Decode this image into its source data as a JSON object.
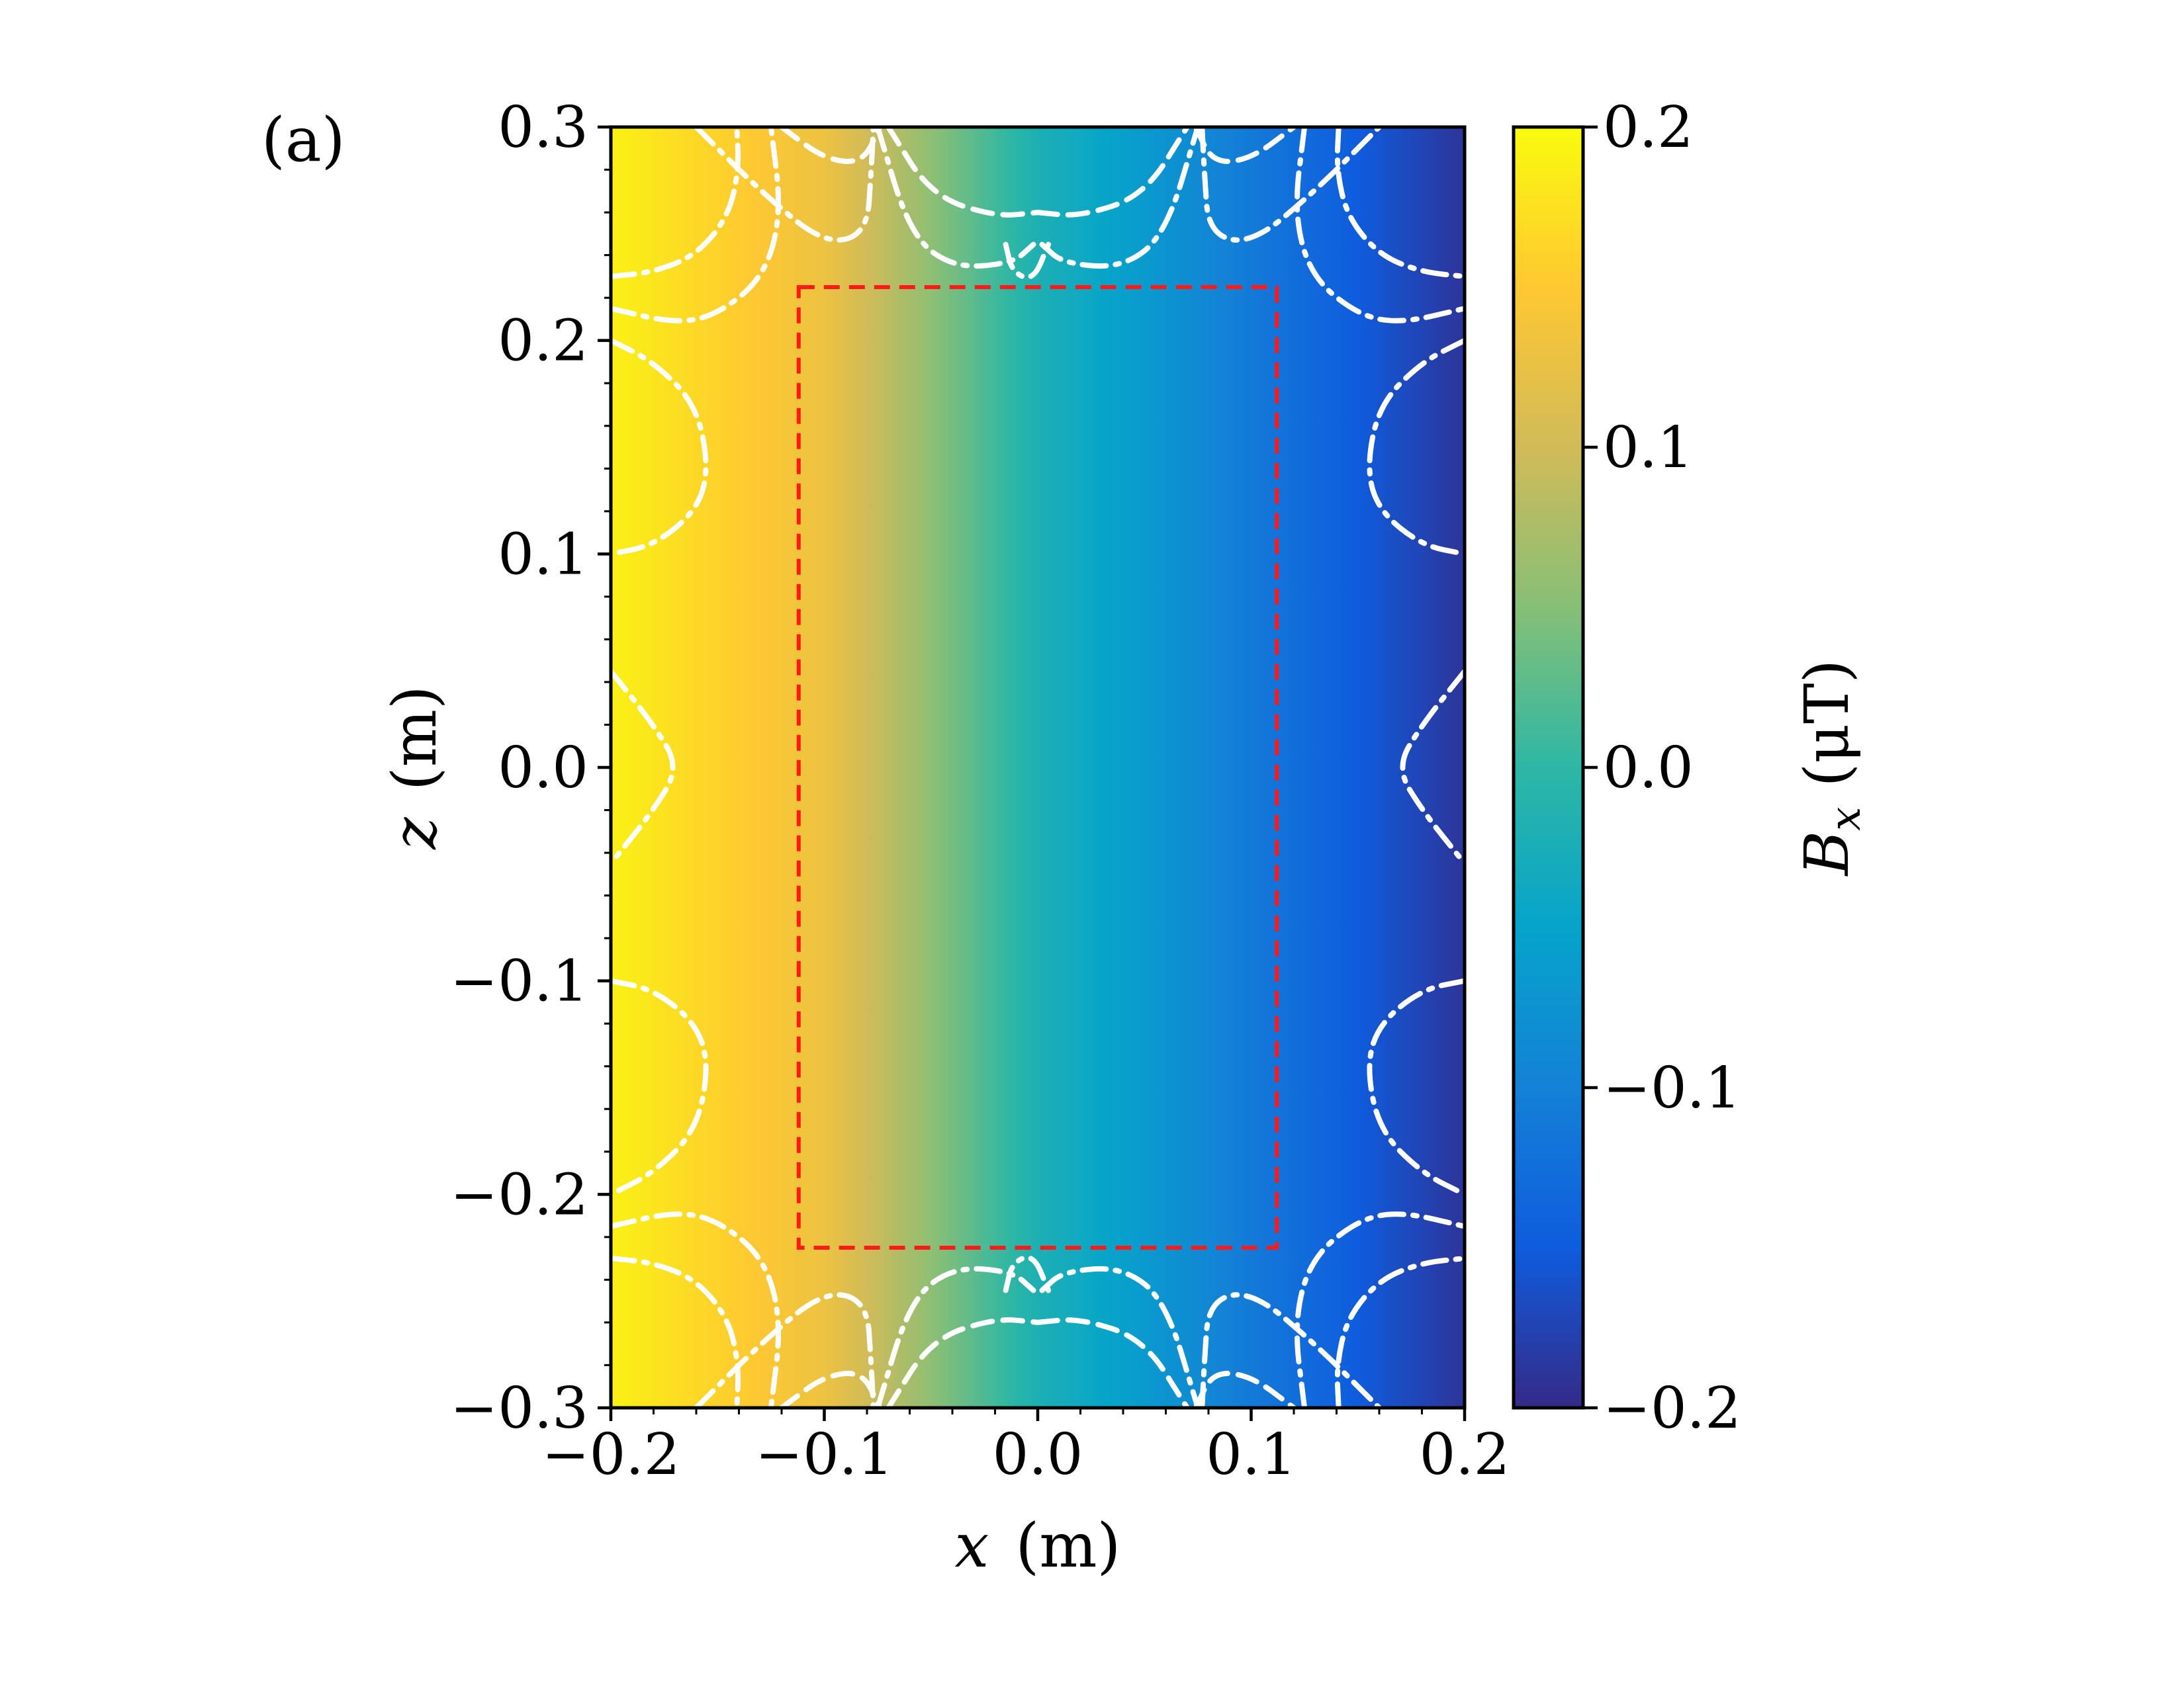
{
  "panel_label": "(a)",
  "colors": {
    "colormap": [
      "#352a87",
      "#0f5cdd",
      "#1481d6",
      "#06a4ca",
      "#2eb7a4",
      "#87bf77",
      "#d1bb59",
      "#fec832",
      "#f9fb0e"
    ],
    "contour": "#ffffff",
    "roi": "#ff1a1a"
  },
  "chart_data": {
    "type": "heatmap",
    "title": "",
    "xlabel_var": "x",
    "xlabel_unit": "(m)",
    "ylabel_var": "z",
    "ylabel_unit": "(m)",
    "xlim": [
      -0.2,
      0.2
    ],
    "ylim": [
      -0.3,
      0.3
    ],
    "x_ticks": [
      -0.2,
      -0.1,
      0.0,
      0.1,
      0.2
    ],
    "x_tick_labels": [
      "−0.2",
      "−0.1",
      "0.0",
      "0.1",
      "0.2"
    ],
    "y_ticks": [
      -0.3,
      -0.2,
      -0.1,
      0.0,
      0.1,
      0.2,
      0.3
    ],
    "y_tick_labels": [
      "−0.3",
      "−0.2",
      "−0.1",
      "0.0",
      "0.1",
      "0.2",
      "0.3"
    ],
    "field": {
      "description_formula": "Bx varies approximately linearly with x",
      "x_profile": [
        -0.2,
        -0.1,
        0.0,
        0.1,
        0.2
      ],
      "bx_profile": [
        0.19,
        0.13,
        -0.02,
        -0.11,
        -0.19
      ]
    },
    "colorbar": {
      "label_var": "B",
      "label_sub": "x",
      "label_unit": "(μT)",
      "range": [
        -0.2,
        0.2
      ],
      "ticks": [
        -0.2,
        -0.1,
        0.0,
        0.1,
        0.2
      ],
      "tick_labels": [
        "−0.2",
        "−0.1",
        "0.0",
        "0.1",
        "0.2"
      ]
    },
    "roi_box": {
      "x": [
        -0.112,
        0.112
      ],
      "z": [
        -0.225,
        0.225
      ]
    },
    "contours": [
      {
        "style": "dashdot",
        "points": [
          [
            -0.2,
            0.23
          ],
          [
            -0.18,
            0.232
          ],
          [
            -0.16,
            0.24
          ],
          [
            -0.145,
            0.258
          ],
          [
            -0.14,
            0.28
          ],
          [
            -0.141,
            0.3
          ]
        ]
      },
      {
        "style": "dashdot",
        "points": [
          [
            -0.2,
            0.215
          ],
          [
            -0.17,
            0.208
          ],
          [
            -0.15,
            0.212
          ],
          [
            -0.128,
            0.23
          ],
          [
            -0.12,
            0.26
          ],
          [
            -0.125,
            0.3
          ]
        ]
      },
      {
        "style": "dashdot",
        "points": [
          [
            -0.16,
            0.3
          ],
          [
            -0.13,
            0.27
          ],
          [
            -0.1,
            0.245
          ],
          [
            -0.08,
            0.25
          ],
          [
            -0.078,
            0.28
          ],
          [
            -0.077,
            0.3
          ]
        ]
      },
      {
        "style": "dashed",
        "points": [
          [
            -0.12,
            0.3
          ],
          [
            -0.1,
            0.285
          ],
          [
            -0.082,
            0.283
          ],
          [
            -0.074,
            0.3
          ]
        ]
      },
      {
        "style": "dashdot",
        "points": [
          [
            -0.075,
            0.3
          ],
          [
            -0.06,
            0.25
          ],
          [
            -0.04,
            0.234
          ],
          [
            -0.012,
            0.236
          ],
          [
            -0.002,
            0.245
          ]
        ]
      },
      {
        "style": "dashed",
        "points": [
          [
            -0.07,
            0.3
          ],
          [
            -0.05,
            0.268
          ],
          [
            -0.02,
            0.258
          ],
          [
            0.0,
            0.26
          ]
        ]
      },
      {
        "style": "dashdot",
        "points": [
          [
            -0.015,
            0.245
          ],
          [
            -0.012,
            0.232
          ],
          [
            -0.002,
            0.228
          ],
          [
            0.005,
            0.245
          ]
        ]
      },
      {
        "style": "dashdot",
        "points": [
          [
            0.002,
            0.245
          ],
          [
            0.012,
            0.236
          ],
          [
            0.04,
            0.234
          ],
          [
            0.06,
            0.25
          ],
          [
            0.075,
            0.3
          ]
        ]
      },
      {
        "style": "dashed",
        "points": [
          [
            0.0,
            0.26
          ],
          [
            0.02,
            0.258
          ],
          [
            0.05,
            0.268
          ],
          [
            0.07,
            0.3
          ]
        ]
      },
      {
        "style": "dashed",
        "points": [
          [
            0.074,
            0.3
          ],
          [
            0.082,
            0.283
          ],
          [
            0.1,
            0.285
          ],
          [
            0.12,
            0.3
          ]
        ]
      },
      {
        "style": "dashdot",
        "points": [
          [
            0.077,
            0.3
          ],
          [
            0.078,
            0.28
          ],
          [
            0.08,
            0.25
          ],
          [
            0.1,
            0.245
          ],
          [
            0.13,
            0.27
          ],
          [
            0.16,
            0.3
          ]
        ]
      },
      {
        "style": "dashdot",
        "points": [
          [
            0.125,
            0.3
          ],
          [
            0.12,
            0.26
          ],
          [
            0.128,
            0.23
          ],
          [
            0.15,
            0.212
          ],
          [
            0.17,
            0.208
          ],
          [
            0.2,
            0.215
          ]
        ]
      },
      {
        "style": "dashdot",
        "points": [
          [
            0.141,
            0.3
          ],
          [
            0.14,
            0.28
          ],
          [
            0.145,
            0.258
          ],
          [
            0.16,
            0.24
          ],
          [
            0.18,
            0.232
          ],
          [
            0.2,
            0.23
          ]
        ]
      },
      {
        "style": "dashdot",
        "points": [
          [
            -0.2,
            0.2
          ],
          [
            -0.18,
            0.19
          ],
          [
            -0.16,
            0.17
          ],
          [
            -0.154,
            0.14
          ],
          [
            -0.16,
            0.12
          ],
          [
            -0.18,
            0.104
          ],
          [
            -0.2,
            0.1
          ]
        ]
      },
      {
        "style": "dashdot",
        "points": [
          [
            -0.2,
            0.045
          ],
          [
            -0.18,
            0.02
          ],
          [
            -0.168,
            0.0
          ],
          [
            -0.18,
            -0.02
          ],
          [
            -0.2,
            -0.045
          ]
        ]
      },
      {
        "style": "dashdot",
        "points": [
          [
            -0.2,
            -0.1
          ],
          [
            -0.18,
            -0.104
          ],
          [
            -0.16,
            -0.12
          ],
          [
            -0.154,
            -0.14
          ],
          [
            -0.16,
            -0.17
          ],
          [
            -0.18,
            -0.19
          ],
          [
            -0.2,
            -0.2
          ]
        ]
      },
      {
        "style": "dashdot",
        "points": [
          [
            0.2,
            0.2
          ],
          [
            0.18,
            0.19
          ],
          [
            0.16,
            0.17
          ],
          [
            0.154,
            0.14
          ],
          [
            0.16,
            0.12
          ],
          [
            0.18,
            0.104
          ],
          [
            0.2,
            0.1
          ]
        ]
      },
      {
        "style": "dashdot",
        "points": [
          [
            0.2,
            0.045
          ],
          [
            0.18,
            0.02
          ],
          [
            0.168,
            0.0
          ],
          [
            0.18,
            -0.02
          ],
          [
            0.2,
            -0.045
          ]
        ]
      },
      {
        "style": "dashdot",
        "points": [
          [
            0.2,
            -0.1
          ],
          [
            0.18,
            -0.104
          ],
          [
            0.16,
            -0.12
          ],
          [
            0.154,
            -0.14
          ],
          [
            0.16,
            -0.17
          ],
          [
            0.18,
            -0.19
          ],
          [
            0.2,
            -0.2
          ]
        ]
      },
      {
        "style": "dashdot",
        "points": [
          [
            -0.2,
            -0.23
          ],
          [
            -0.18,
            -0.232
          ],
          [
            -0.16,
            -0.24
          ],
          [
            -0.145,
            -0.258
          ],
          [
            -0.14,
            -0.28
          ],
          [
            -0.141,
            -0.3
          ]
        ]
      },
      {
        "style": "dashdot",
        "points": [
          [
            -0.2,
            -0.215
          ],
          [
            -0.17,
            -0.208
          ],
          [
            -0.15,
            -0.212
          ],
          [
            -0.128,
            -0.23
          ],
          [
            -0.12,
            -0.26
          ],
          [
            -0.125,
            -0.3
          ]
        ]
      },
      {
        "style": "dashdot",
        "points": [
          [
            -0.16,
            -0.3
          ],
          [
            -0.13,
            -0.27
          ],
          [
            -0.1,
            -0.245
          ],
          [
            -0.08,
            -0.25
          ],
          [
            -0.078,
            -0.28
          ],
          [
            -0.077,
            -0.3
          ]
        ]
      },
      {
        "style": "dashed",
        "points": [
          [
            -0.12,
            -0.3
          ],
          [
            -0.1,
            -0.285
          ],
          [
            -0.082,
            -0.283
          ],
          [
            -0.074,
            -0.3
          ]
        ]
      },
      {
        "style": "dashdot",
        "points": [
          [
            -0.075,
            -0.3
          ],
          [
            -0.06,
            -0.25
          ],
          [
            -0.04,
            -0.234
          ],
          [
            -0.012,
            -0.236
          ],
          [
            -0.002,
            -0.245
          ]
        ]
      },
      {
        "style": "dashed",
        "points": [
          [
            -0.07,
            -0.3
          ],
          [
            -0.05,
            -0.268
          ],
          [
            -0.02,
            -0.258
          ],
          [
            0.0,
            -0.26
          ]
        ]
      },
      {
        "style": "dashdot",
        "points": [
          [
            -0.015,
            -0.245
          ],
          [
            -0.012,
            -0.232
          ],
          [
            -0.002,
            -0.228
          ],
          [
            0.005,
            -0.245
          ]
        ]
      },
      {
        "style": "dashdot",
        "points": [
          [
            0.002,
            -0.245
          ],
          [
            0.012,
            -0.236
          ],
          [
            0.04,
            -0.234
          ],
          [
            0.06,
            -0.25
          ],
          [
            0.075,
            -0.3
          ]
        ]
      },
      {
        "style": "dashed",
        "points": [
          [
            0.0,
            -0.26
          ],
          [
            0.02,
            -0.258
          ],
          [
            0.05,
            -0.268
          ],
          [
            0.07,
            -0.3
          ]
        ]
      },
      {
        "style": "dashed",
        "points": [
          [
            0.074,
            -0.3
          ],
          [
            0.082,
            -0.283
          ],
          [
            0.1,
            -0.285
          ],
          [
            0.12,
            -0.3
          ]
        ]
      },
      {
        "style": "dashdot",
        "points": [
          [
            0.077,
            -0.3
          ],
          [
            0.078,
            -0.28
          ],
          [
            0.08,
            -0.25
          ],
          [
            0.1,
            -0.245
          ],
          [
            0.13,
            -0.27
          ],
          [
            0.16,
            -0.3
          ]
        ]
      },
      {
        "style": "dashdot",
        "points": [
          [
            0.125,
            -0.3
          ],
          [
            0.12,
            -0.26
          ],
          [
            0.128,
            -0.23
          ],
          [
            0.15,
            -0.212
          ],
          [
            0.17,
            -0.208
          ],
          [
            0.2,
            -0.215
          ]
        ]
      },
      {
        "style": "dashdot",
        "points": [
          [
            0.141,
            -0.3
          ],
          [
            0.14,
            -0.28
          ],
          [
            0.145,
            -0.258
          ],
          [
            0.16,
            -0.24
          ],
          [
            0.18,
            -0.232
          ],
          [
            0.2,
            -0.23
          ]
        ]
      }
    ]
  }
}
